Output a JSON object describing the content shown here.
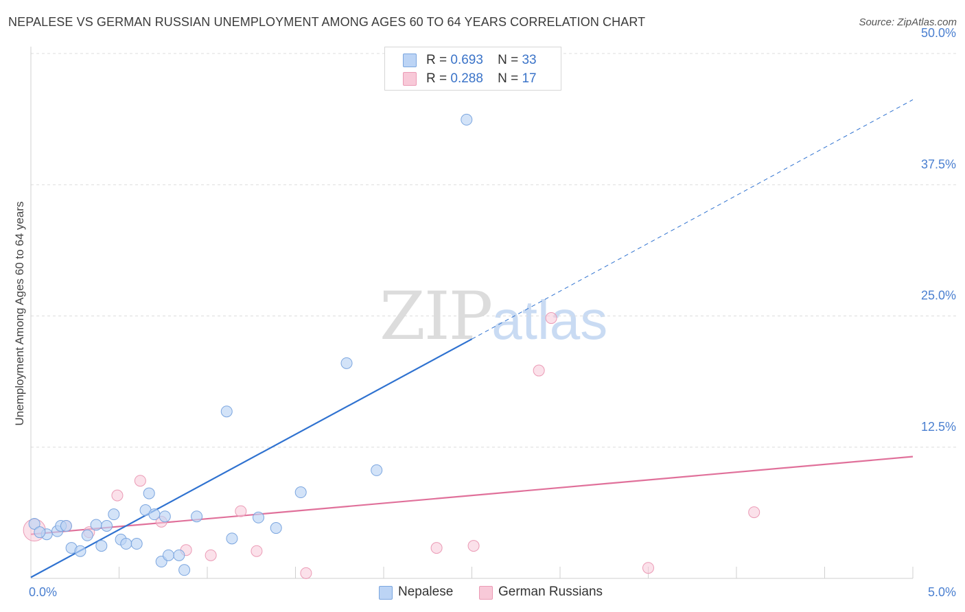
{
  "title": "NEPALESE VS GERMAN RUSSIAN UNEMPLOYMENT AMONG AGES 60 TO 64 YEARS CORRELATION CHART",
  "source": "Source: ZipAtlas.com",
  "watermark": {
    "zip": "ZIP",
    "atlas": "atlas"
  },
  "legend": {
    "rows": [
      {
        "r_label": "R =",
        "r_value": "0.693",
        "n_label": "N =",
        "n_value": "33"
      },
      {
        "r_label": "R =",
        "r_value": "0.288",
        "n_label": "N =",
        "n_value": "17"
      }
    ]
  },
  "bottom_legend": [
    "Nepalese",
    "German Russians"
  ],
  "colors": {
    "nepalese_fill": "#bcd4f5",
    "nepalese_stroke": "#7aa5df",
    "nepalese_line": "#2f72d0",
    "german_fill": "#f8c9d8",
    "german_stroke": "#eb9ab5",
    "german_line": "#e0709a",
    "grid": "#dcdcdc",
    "axis_label": "#4a7fd0"
  },
  "chart_data": {
    "type": "scatter",
    "title": "NEPALESE VS GERMAN RUSSIAN UNEMPLOYMENT AMONG AGES 60 TO 64 YEARS CORRELATION CHART",
    "xlabel": "",
    "ylabel": "Unemployment Among Ages 60 to 64 years",
    "xlim": [
      0,
      5
    ],
    "ylim": [
      0,
      50
    ],
    "x_tick_labels": [
      "0.0%",
      "5.0%"
    ],
    "y_ticks": [
      12.5,
      25.0,
      37.5,
      50.0
    ],
    "y_tick_labels": [
      "12.5%",
      "25.0%",
      "37.5%",
      "50.0%"
    ],
    "legend_position": "top-center",
    "series": [
      {
        "name": "Nepalese",
        "r": 0.693,
        "n": 33,
        "points": [
          [
            0.02,
            5.2
          ],
          [
            0.09,
            4.2
          ],
          [
            0.15,
            4.5
          ],
          [
            0.17,
            5.0
          ],
          [
            0.2,
            5.0
          ],
          [
            0.23,
            2.9
          ],
          [
            0.28,
            2.6
          ],
          [
            0.32,
            4.1
          ],
          [
            0.37,
            5.1
          ],
          [
            0.4,
            3.1
          ],
          [
            0.43,
            5.0
          ],
          [
            0.47,
            6.1
          ],
          [
            0.51,
            3.7
          ],
          [
            0.54,
            3.3
          ],
          [
            0.6,
            3.3
          ],
          [
            0.65,
            6.5
          ],
          [
            0.67,
            8.1
          ],
          [
            0.7,
            6.1
          ],
          [
            0.74,
            1.6
          ],
          [
            0.76,
            5.9
          ],
          [
            0.78,
            2.2
          ],
          [
            0.84,
            2.2
          ],
          [
            0.87,
            0.8
          ],
          [
            0.94,
            5.9
          ],
          [
            1.11,
            15.9
          ],
          [
            1.14,
            3.8
          ],
          [
            1.29,
            5.8
          ],
          [
            1.39,
            4.8
          ],
          [
            1.53,
            8.2
          ],
          [
            1.79,
            20.5
          ],
          [
            1.96,
            10.3
          ],
          [
            2.47,
            43.7
          ],
          [
            0.05,
            4.4
          ]
        ],
        "trend": {
          "x": [
            0,
            2.5
          ],
          "y": [
            0.1,
            22.8
          ],
          "dashed_extension": {
            "x": [
              2.5,
              5.0
            ],
            "y": [
              22.8,
              45.6
            ]
          }
        }
      },
      {
        "name": "German Russians",
        "r": 0.288,
        "n": 17,
        "points": [
          [
            0.02,
            4.6
          ],
          [
            0.2,
            5.0
          ],
          [
            0.33,
            4.4
          ],
          [
            0.49,
            7.9
          ],
          [
            0.62,
            9.3
          ],
          [
            0.74,
            5.4
          ],
          [
            0.88,
            2.7
          ],
          [
            1.02,
            2.2
          ],
          [
            1.19,
            6.4
          ],
          [
            1.28,
            2.6
          ],
          [
            1.56,
            0.5
          ],
          [
            2.3,
            2.9
          ],
          [
            2.51,
            3.1
          ],
          [
            2.88,
            19.8
          ],
          [
            2.95,
            24.8
          ],
          [
            3.5,
            1.0
          ],
          [
            4.1,
            6.3
          ]
        ],
        "trend": {
          "x": [
            0,
            5.0
          ],
          "y": [
            4.2,
            11.6
          ]
        }
      }
    ]
  }
}
